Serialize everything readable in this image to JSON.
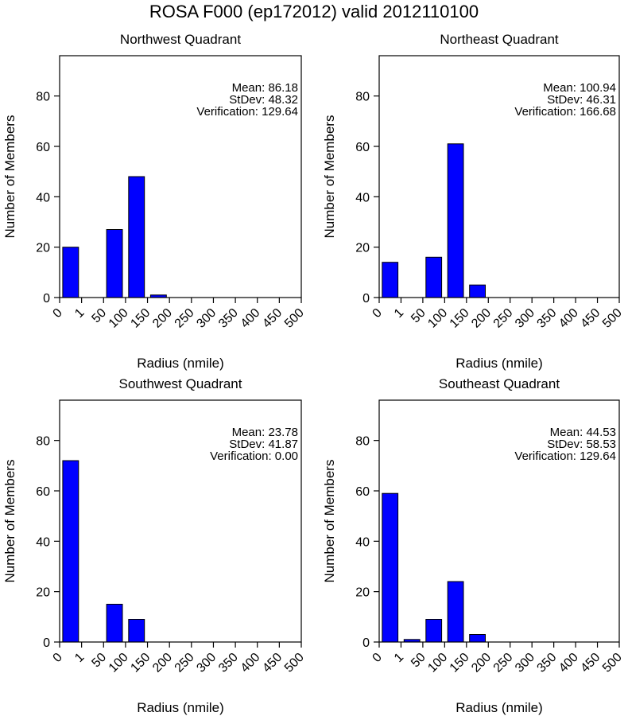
{
  "figure": {
    "title": "ROSA F000 (ep172012) valid 2012110100"
  },
  "chart_data": [
    {
      "type": "bar",
      "title": "Northwest Quadrant",
      "xlabel": "Radius (nmile)",
      "ylabel": "Number of Members",
      "x_tick_labels": [
        "0",
        "1",
        "50",
        "100",
        "150",
        "200",
        "250",
        "300",
        "350",
        "400",
        "450",
        "500"
      ],
      "y_ticks": [
        0,
        20,
        40,
        60,
        80
      ],
      "ylim": [
        0,
        96
      ],
      "values": [
        20,
        0,
        27,
        48,
        1,
        0,
        0,
        0,
        0,
        0
      ],
      "stats": {
        "mean": "Mean: 86.18",
        "stdev": "StDev: 48.32",
        "verification": "Verification: 129.64"
      },
      "bar_color": "#0000ff"
    },
    {
      "type": "bar",
      "title": "Northeast Quadrant",
      "xlabel": "Radius (nmile)",
      "ylabel": "Number of Members",
      "x_tick_labels": [
        "0",
        "1",
        "50",
        "100",
        "150",
        "200",
        "250",
        "300",
        "350",
        "400",
        "450",
        "500"
      ],
      "y_ticks": [
        0,
        20,
        40,
        60,
        80
      ],
      "ylim": [
        0,
        96
      ],
      "values": [
        14,
        0,
        16,
        61,
        5,
        0,
        0,
        0,
        0,
        0
      ],
      "stats": {
        "mean": "Mean: 100.94",
        "stdev": "StDev: 46.31",
        "verification": "Verification: 166.68"
      },
      "bar_color": "#0000ff"
    },
    {
      "type": "bar",
      "title": "Southwest Quadrant",
      "xlabel": "Radius (nmile)",
      "ylabel": "Number of Members",
      "x_tick_labels": [
        "0",
        "1",
        "50",
        "100",
        "150",
        "200",
        "250",
        "300",
        "350",
        "400",
        "450",
        "500"
      ],
      "y_ticks": [
        0,
        20,
        40,
        60,
        80
      ],
      "ylim": [
        0,
        96
      ],
      "values": [
        72,
        0,
        15,
        9,
        0,
        0,
        0,
        0,
        0,
        0
      ],
      "stats": {
        "mean": "Mean: 23.78",
        "stdev": "StDev: 41.87",
        "verification": "Verification: 0.00"
      },
      "bar_color": "#0000ff"
    },
    {
      "type": "bar",
      "title": "Southeast Quadrant",
      "xlabel": "Radius (nmile)",
      "ylabel": "Number of Members",
      "x_tick_labels": [
        "0",
        "1",
        "50",
        "100",
        "150",
        "200",
        "250",
        "300",
        "350",
        "400",
        "450",
        "500"
      ],
      "y_ticks": [
        0,
        20,
        40,
        60,
        80
      ],
      "ylim": [
        0,
        96
      ],
      "values": [
        59,
        1,
        9,
        24,
        3,
        0,
        0,
        0,
        0,
        0
      ],
      "stats": {
        "mean": "Mean: 44.53",
        "stdev": "StDev: 58.53",
        "verification": "Verification: 129.64"
      },
      "bar_color": "#0000ff"
    }
  ]
}
